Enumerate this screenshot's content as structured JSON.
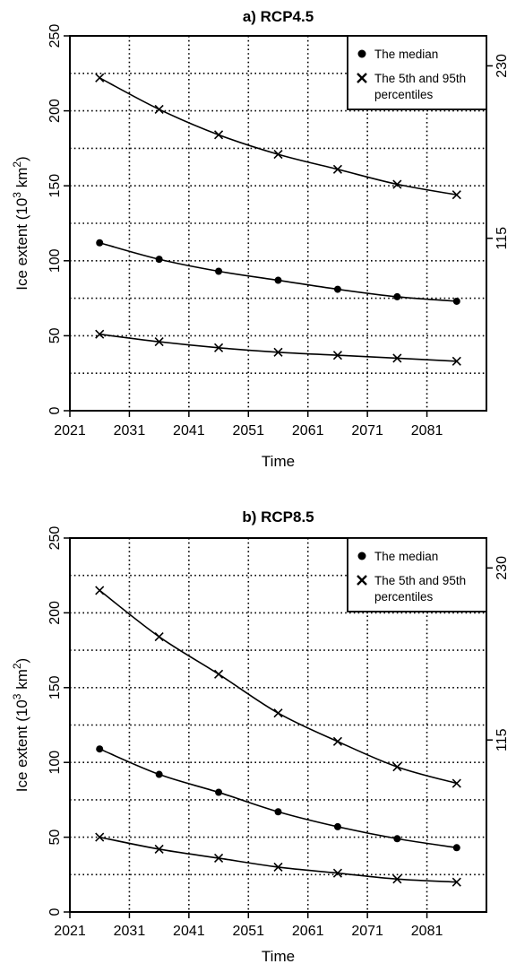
{
  "chart_data": [
    {
      "type": "line",
      "title": "a) RCP4.5",
      "xlabel": "Time",
      "ylabel_main": "Ice extent (10",
      "ylabel_sup1": "3",
      "ylabel_mid": " km",
      "ylabel_sup2": "2",
      "ylabel_end": ")",
      "xlim": [
        2021,
        2091
      ],
      "ylim": [
        0,
        250
      ],
      "xticks": [
        "2021",
        "2031",
        "2041",
        "2051",
        "2061",
        "2071",
        "2081"
      ],
      "yticks": [
        "0",
        "50",
        "100",
        "150",
        "200",
        "250"
      ],
      "right_ticks": [
        {
          "label": "230",
          "y": 230
        },
        {
          "label": "115",
          "y": 115
        }
      ],
      "grid": true,
      "legend": {
        "position": "top-right",
        "entries": [
          "The median",
          "The 5th and 95th",
          "percentiles"
        ]
      },
      "x": [
        2026,
        2036,
        2046,
        2056,
        2066,
        2076,
        2086
      ],
      "series": [
        {
          "name": "The 5th and 95th percentiles",
          "marker": "x",
          "values": [
            222,
            201,
            184,
            171,
            161,
            151,
            144
          ]
        },
        {
          "name": "The median",
          "marker": "dot",
          "values": [
            112,
            101,
            93,
            87,
            81,
            76,
            73
          ]
        },
        {
          "name": "The 5th and 95th percentiles",
          "marker": "x",
          "values": [
            51,
            46,
            42,
            39,
            37,
            35,
            33
          ]
        }
      ]
    },
    {
      "type": "line",
      "title": "b) RCP8.5",
      "xlabel": "Time",
      "ylabel_main": "Ice extent (10",
      "ylabel_sup1": "3",
      "ylabel_mid": " km",
      "ylabel_sup2": "2",
      "ylabel_end": ")",
      "xlim": [
        2021,
        2091
      ],
      "ylim": [
        0,
        250
      ],
      "xticks": [
        "2021",
        "2031",
        "2041",
        "2051",
        "2061",
        "2071",
        "2081"
      ],
      "yticks": [
        "0",
        "50",
        "100",
        "150",
        "200",
        "250"
      ],
      "right_ticks": [
        {
          "label": "230",
          "y": 230
        },
        {
          "label": "115",
          "y": 115
        }
      ],
      "grid": true,
      "legend": {
        "position": "top-right",
        "entries": [
          "The median",
          "The 5th and 95th",
          "percentiles"
        ]
      },
      "x": [
        2026,
        2036,
        2046,
        2056,
        2066,
        2076,
        2086
      ],
      "series": [
        {
          "name": "The 5th and 95th percentiles",
          "marker": "x",
          "values": [
            215,
            184,
            159,
            133,
            114,
            97,
            86
          ]
        },
        {
          "name": "The median",
          "marker": "dot",
          "values": [
            109,
            92,
            80,
            67,
            57,
            49,
            43
          ]
        },
        {
          "name": "The 5th and 95th percentiles",
          "marker": "x",
          "values": [
            50,
            42,
            36,
            30,
            26,
            22,
            20
          ]
        }
      ]
    }
  ]
}
